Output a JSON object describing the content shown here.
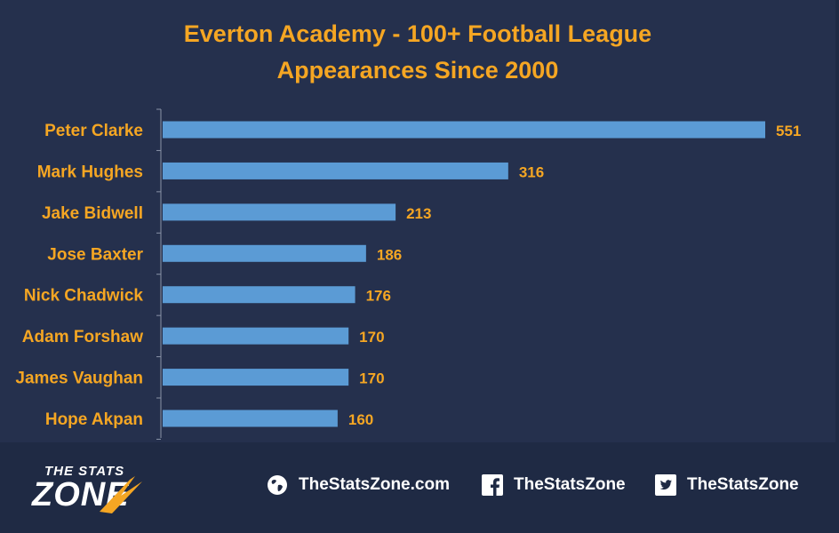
{
  "chart_data": {
    "type": "bar",
    "orientation": "horizontal",
    "title": [
      "Everton Academy - 100+ Football League",
      "Appearances Since 2000"
    ],
    "categories": [
      "Peter Clarke",
      "Mark Hughes",
      "Jake Bidwell",
      "Jose Baxter",
      "Nick Chadwick",
      "Adam Forshaw",
      "James Vaughan",
      "Hope Akpan"
    ],
    "values": [
      551,
      316,
      213,
      186,
      176,
      170,
      170,
      160
    ],
    "xlim": [
      0,
      551
    ],
    "grid": false,
    "legend": "none",
    "data_labels": true
  },
  "colors": {
    "bar": "#5b9bd5",
    "label": "#f5a623",
    "background": "#25304d",
    "footer": "#1f2a44",
    "text_white": "#ffffff"
  },
  "footer": {
    "logo_line1": "THE STATS",
    "logo_line2": "ZONE",
    "website": "TheStatsZone.com",
    "facebook": "TheStatsZone",
    "twitter": "TheStatsZone",
    "icons": [
      "globe-icon",
      "facebook-icon",
      "twitter-icon"
    ]
  }
}
